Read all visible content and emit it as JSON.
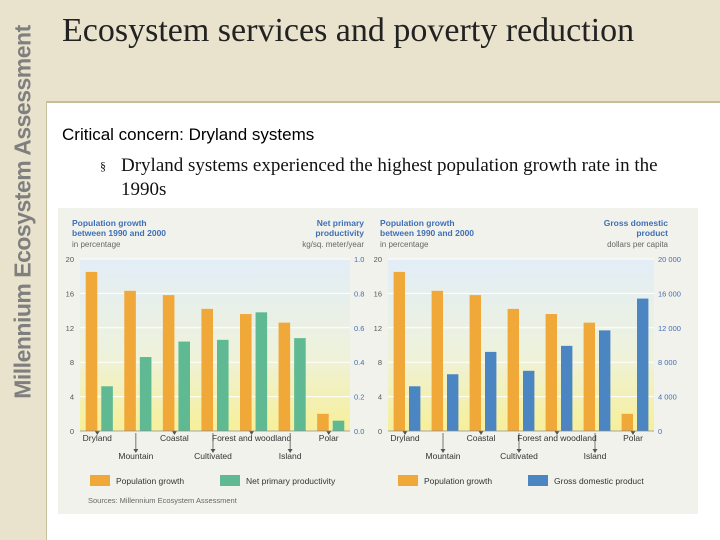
{
  "brand": "Millennium Ecosystem Assessment",
  "slide": {
    "title": "Ecosystem services and poverty reduction",
    "concern": "Critical concern:  Dryland systems",
    "bullet_mark": "§",
    "bullet": "Dryland systems experienced the highest population growth rate in the 1990s"
  },
  "colors": {
    "sidebar_bg": "#e9e3cd",
    "population_bar": "#f0a839",
    "npp_bar": "#5fba93",
    "gdp_bar": "#4b86c2",
    "label_blue": "#3f6fb5"
  },
  "chart_data": [
    {
      "type": "bar",
      "categories": [
        "Dryland",
        "Mountain",
        "Coastal",
        "Cultivated",
        "Forest and woodland",
        "Island",
        "Polar"
      ],
      "left_axis": {
        "title_lines": [
          "Population growth",
          "between 1990 and 2000"
        ],
        "unit": "in percentage",
        "ticks": [
          "0",
          "4",
          "8",
          "12",
          "16",
          "20"
        ],
        "ylim": [
          0,
          20
        ]
      },
      "right_axis": {
        "title_lines": [
          "Net primary",
          "productivity"
        ],
        "unit": "kg/sq. meter/year",
        "ticks": [
          "0.0",
          "0.2",
          "0.4",
          "0.6",
          "0.8",
          "1.0"
        ],
        "ylim": [
          0,
          1
        ]
      },
      "series": [
        {
          "name": "Population growth",
          "axis": "left",
          "values": [
            18.5,
            16.3,
            15.8,
            14.2,
            13.6,
            12.6,
            2.0
          ]
        },
        {
          "name": "Net primary productivity",
          "axis": "right",
          "values": [
            0.26,
            0.43,
            0.52,
            0.53,
            0.69,
            0.54,
            0.06
          ]
        }
      ],
      "legend": [
        "Population growth",
        "Net primary productivity"
      ],
      "legend_position": "bottom"
    },
    {
      "type": "bar",
      "categories": [
        "Dryland",
        "Mountain",
        "Coastal",
        "Cultivated",
        "Forest and woodland",
        "Island",
        "Polar"
      ],
      "left_axis": {
        "title_lines": [
          "Population growth",
          "between 1990 and 2000"
        ],
        "unit": "in percentage",
        "ticks": [
          "0",
          "4",
          "8",
          "12",
          "16",
          "20"
        ],
        "ylim": [
          0,
          20
        ]
      },
      "right_axis": {
        "title_lines": [
          "Gross domestic",
          "product"
        ],
        "unit": "dollars per capita",
        "ticks": [
          "0",
          "4 000",
          "8 000",
          "12 000",
          "16 000",
          "20 000"
        ],
        "ylim": [
          0,
          20000
        ]
      },
      "series": [
        {
          "name": "Population growth",
          "axis": "left",
          "values": [
            18.5,
            16.3,
            15.8,
            14.2,
            13.6,
            12.6,
            2.0
          ]
        },
        {
          "name": "Gross domestic product",
          "axis": "right",
          "values": [
            5200,
            6600,
            9200,
            7000,
            9900,
            11700,
            15400
          ]
        }
      ],
      "legend": [
        "Population growth",
        "Gross domestic product"
      ],
      "legend_position": "bottom"
    }
  ],
  "source": "Sources: Millennium Ecosystem Assessment"
}
